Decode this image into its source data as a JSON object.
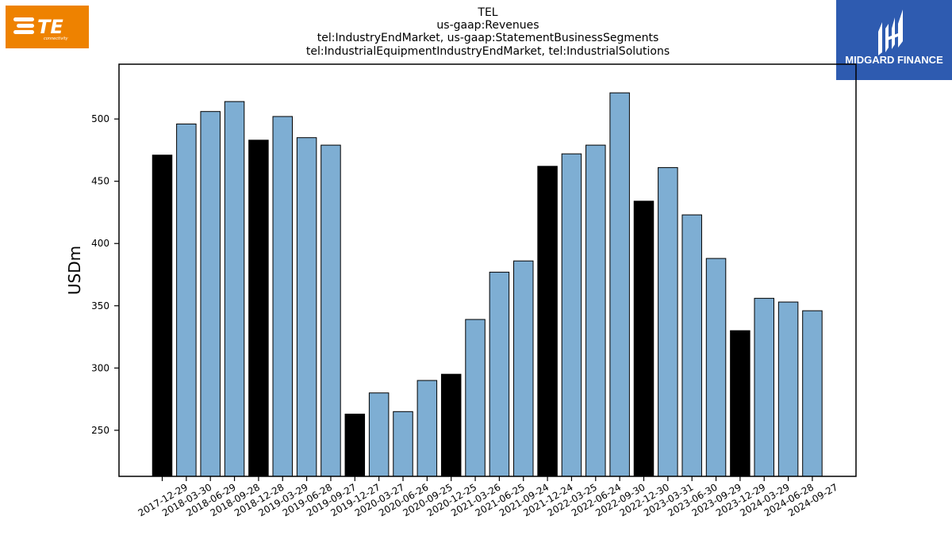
{
  "logos": {
    "left": {
      "text": "TE",
      "subtext": "connectivity",
      "color": "#ee8200"
    },
    "right": {
      "text": "MIDGARD FINANCE",
      "color": "#2e5bb0"
    }
  },
  "chart_data": {
    "type": "bar",
    "title_lines": [
      "TEL",
      "us-gaap:Revenues",
      "tel:IndustryEndMarket, us-gaap:StatementBusinessSegments",
      "tel:IndustrialEquipmentIndustryEndMarket, tel:IndustrialSolutions"
    ],
    "ylabel": "USDm",
    "xlabel": "",
    "ylim": [
      213,
      544
    ],
    "yticks": [
      250,
      300,
      350,
      400,
      450,
      500
    ],
    "grid": false,
    "categories": [
      "2017-12-29",
      "2018-03-30",
      "2018-06-29",
      "2018-09-28",
      "2018-12-28",
      "2019-03-29",
      "2019-06-28",
      "2019-09-27",
      "2019-12-27",
      "2020-03-27",
      "2020-06-26",
      "2020-09-25",
      "2020-12-25",
      "2021-03-26",
      "2021-06-25",
      "2021-09-24",
      "2021-12-24",
      "2022-03-25",
      "2022-06-24",
      "2022-09-30",
      "2022-12-30",
      "2023-03-31",
      "2023-06-30",
      "2023-09-29",
      "2023-12-29",
      "2024-03-29",
      "2024-06-28",
      "2024-09-27"
    ],
    "values": [
      471,
      496,
      506,
      514,
      483,
      502,
      485,
      479,
      263,
      280,
      265,
      290,
      295,
      339,
      377,
      386,
      462,
      472,
      479,
      521,
      434,
      461,
      423,
      388,
      330,
      356,
      353,
      346
    ],
    "highlight_indices": [
      0,
      4,
      8,
      12,
      16,
      20,
      24
    ],
    "colors": {
      "normal": "#7eaed3",
      "highlight": "#000000",
      "edge": "#000000"
    }
  }
}
